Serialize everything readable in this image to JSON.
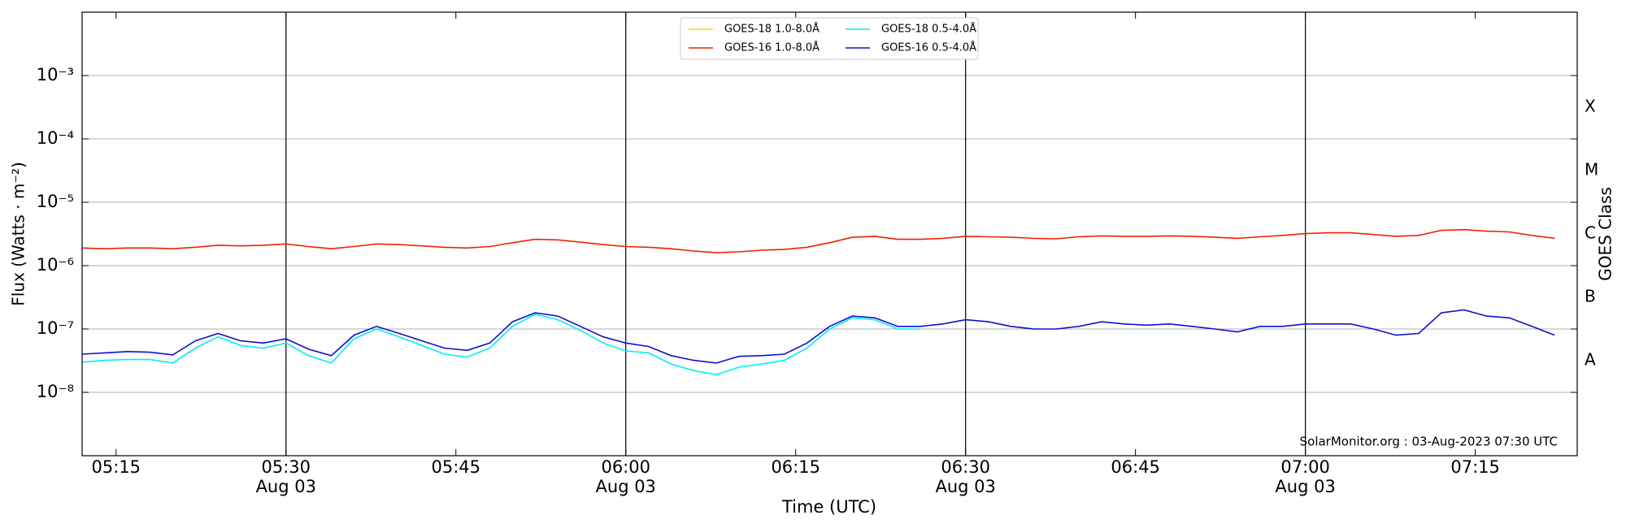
{
  "chart_data": {
    "type": "line",
    "xlabel": "Time (UTC)",
    "ylabel": "Flux (Watts · m⁻²)",
    "y2label": "GOES Class",
    "annotation": "SolarMonitor.org : 03-Aug-2023 07:30 UTC",
    "log_y": true,
    "grid": true,
    "legend_position": "upper center",
    "xlim": [
      "05:12",
      "07:24"
    ],
    "xticks": [
      "05:15",
      {
        "value": "05:30",
        "label": "05:30\nAug 03"
      },
      "05:45",
      {
        "value": "06:00",
        "label": "06:00\nAug 03"
      },
      "06:15",
      {
        "value": "06:30",
        "label": "06:30\nAug 03"
      },
      "06:45",
      {
        "value": "07:00",
        "label": "07:00\nAug 03"
      },
      "07:15"
    ],
    "vlines": [
      "05:30",
      "06:00",
      "06:30",
      "07:00"
    ],
    "ylim": [
      1e-09,
      0.01
    ],
    "yticks": [
      {
        "value": 1e-08,
        "label": "10⁻⁸"
      },
      {
        "value": 1e-07,
        "label": "10⁻⁷"
      },
      {
        "value": 1e-06,
        "label": "10⁻⁶"
      },
      {
        "value": 1e-05,
        "label": "10⁻⁵"
      },
      {
        "value": 0.0001,
        "label": "10⁻⁴"
      },
      {
        "value": 0.001,
        "label": "10⁻³"
      }
    ],
    "y2lim": [
      1e-09,
      0.01
    ],
    "y2ticks": [
      {
        "value": 3.16e-08,
        "label": "A"
      },
      {
        "value": 3.16e-07,
        "label": "B"
      },
      {
        "value": 3.16e-06,
        "label": "C"
      },
      {
        "value": 3.16e-05,
        "label": "M"
      },
      {
        "value": 0.000316,
        "label": "X"
      }
    ],
    "x": [
      "05:12",
      "05:14",
      "05:16",
      "05:18",
      "05:20",
      "05:22",
      "05:24",
      "05:26",
      "05:28",
      "05:30",
      "05:32",
      "05:34",
      "05:36",
      "05:38",
      "05:40",
      "05:42",
      "05:44",
      "05:46",
      "05:48",
      "05:50",
      "05:52",
      "05:54",
      "05:56",
      "05:58",
      "06:00",
      "06:02",
      "06:04",
      "06:06",
      "06:08",
      "06:10",
      "06:12",
      "06:14",
      "06:16",
      "06:18",
      "06:20",
      "06:22",
      "06:24",
      "06:26",
      "06:28",
      "06:30",
      "06:32",
      "06:34",
      "06:36",
      "06:38",
      "06:40",
      "06:42",
      "06:44",
      "06:46",
      "06:48",
      "06:50",
      "06:52",
      "06:54",
      "06:56",
      "06:58",
      "07:00",
      "07:02",
      "07:04",
      "07:06",
      "07:08",
      "07:10",
      "07:12",
      "07:14",
      "07:16",
      "07:18",
      "07:20",
      "07:22"
    ],
    "series": [
      {
        "name": "GOES-18 1.0-8.0Å",
        "color": "#ffd700",
        "values": [
          null,
          null,
          null,
          null,
          null,
          null,
          null,
          null,
          null,
          null,
          null,
          null,
          null,
          null,
          null,
          null,
          null,
          null,
          null,
          null,
          null,
          null,
          null,
          null,
          null,
          null,
          null,
          null,
          null,
          null,
          null,
          null,
          null,
          null,
          null,
          null,
          null,
          null,
          null,
          null,
          null,
          null,
          null,
          null,
          null,
          null,
          null,
          null,
          null,
          null,
          null,
          null,
          null,
          null,
          null,
          null,
          null,
          null,
          null,
          null,
          null,
          null,
          null,
          null,
          null,
          null
        ]
      },
      {
        "name": "GOES-16 1.0-8.0Å",
        "color": "#ee2200",
        "values": [
          1.9e-06,
          1.85e-06,
          1.9e-06,
          1.9e-06,
          1.85e-06,
          1.95e-06,
          2.1e-06,
          2.05e-06,
          2.1e-06,
          2.2e-06,
          2e-06,
          1.85e-06,
          2e-06,
          2.2e-06,
          2.15e-06,
          2.05e-06,
          1.95e-06,
          1.9e-06,
          2e-06,
          2.3e-06,
          2.6e-06,
          2.55e-06,
          2.35e-06,
          2.15e-06,
          2e-06,
          1.95e-06,
          1.85e-06,
          1.7e-06,
          1.6e-06,
          1.65e-06,
          1.75e-06,
          1.8e-06,
          1.95e-06,
          2.3e-06,
          2.8e-06,
          2.9e-06,
          2.6e-06,
          2.6e-06,
          2.7e-06,
          2.9e-06,
          2.85e-06,
          2.8e-06,
          2.7e-06,
          2.65e-06,
          2.85e-06,
          2.95e-06,
          2.9e-06,
          2.9e-06,
          2.95e-06,
          2.9e-06,
          2.8e-06,
          2.7e-06,
          2.85e-06,
          3e-06,
          3.2e-06,
          3.3e-06,
          3.3e-06,
          3.1e-06,
          2.9e-06,
          3e-06,
          3.6e-06,
          3.7e-06,
          3.5e-06,
          3.4e-06,
          3e-06,
          2.7e-06
        ]
      },
      {
        "name": "GOES-18 0.5-4.0Å",
        "color": "#00eeee",
        "values": [
          3e-08,
          3.2e-08,
          3.3e-08,
          3.3e-08,
          2.9e-08,
          5e-08,
          7.5e-08,
          5.5e-08,
          5e-08,
          6e-08,
          3.8e-08,
          2.9e-08,
          7e-08,
          1e-07,
          7.5e-08,
          5.5e-08,
          4e-08,
          3.6e-08,
          5e-08,
          1.1e-07,
          1.7e-07,
          1.4e-07,
          9.5e-08,
          6e-08,
          4.5e-08,
          4.2e-08,
          2.8e-08,
          2.2e-08,
          1.9e-08,
          2.5e-08,
          2.8e-08,
          3.2e-08,
          5e-08,
          1e-07,
          1.5e-07,
          1.4e-07,
          1e-07,
          1e-07,
          null,
          null,
          null,
          null,
          null,
          null,
          null,
          null,
          null,
          null,
          null,
          null,
          null,
          null,
          null,
          null,
          null,
          null,
          null,
          null,
          null,
          null,
          null,
          null,
          null,
          null,
          null,
          null
        ]
      },
      {
        "name": "GOES-16 0.5-4.0Å",
        "color": "#1010cc",
        "values": [
          4e-08,
          4.2e-08,
          4.4e-08,
          4.3e-08,
          3.9e-08,
          6.5e-08,
          8.5e-08,
          6.5e-08,
          6e-08,
          7e-08,
          4.8e-08,
          3.8e-08,
          8e-08,
          1.1e-07,
          8.5e-08,
          6.5e-08,
          5e-08,
          4.6e-08,
          6e-08,
          1.3e-07,
          1.8e-07,
          1.6e-07,
          1.1e-07,
          7.5e-08,
          6e-08,
          5.3e-08,
          3.8e-08,
          3.2e-08,
          2.9e-08,
          3.7e-08,
          3.8e-08,
          4e-08,
          6e-08,
          1.1e-07,
          1.6e-07,
          1.5e-07,
          1.1e-07,
          1.1e-07,
          1.2e-07,
          1.4e-07,
          1.3e-07,
          1.1e-07,
          1e-07,
          1e-07,
          1.1e-07,
          1.3e-07,
          1.2e-07,
          1.15e-07,
          1.2e-07,
          1.1e-07,
          1e-07,
          9e-08,
          1.1e-07,
          1.1e-07,
          1.2e-07,
          1.2e-07,
          1.2e-07,
          1e-07,
          8e-08,
          8.5e-08,
          1.8e-07,
          2e-07,
          1.6e-07,
          1.5e-07,
          1.1e-07,
          8e-08
        ]
      }
    ]
  }
}
